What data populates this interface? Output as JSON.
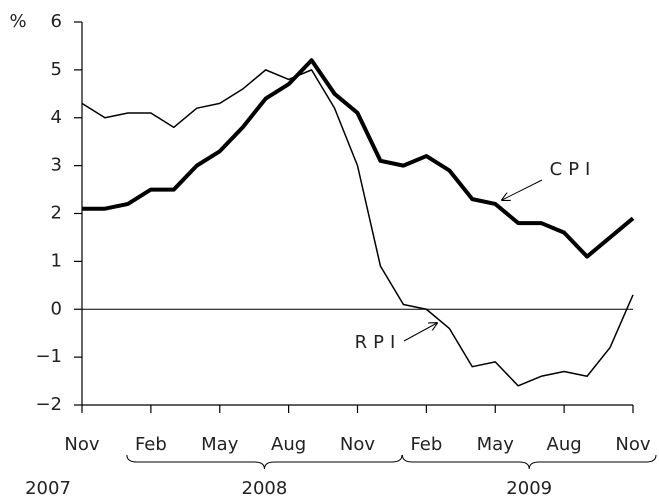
{
  "chart_data": {
    "type": "line",
    "y_label": "%",
    "categories": [
      "Nov",
      null,
      null,
      "Feb",
      null,
      null,
      "May",
      null,
      null,
      "Aug",
      null,
      null,
      "Nov",
      null,
      null,
      "Feb",
      null,
      null,
      "May",
      null,
      null,
      "Aug",
      null,
      null,
      "Nov"
    ],
    "years": [
      "2007",
      "2008",
      "2009"
    ],
    "series": [
      {
        "name": "CPI",
        "color": "#000000",
        "width": 4,
        "values": [
          2.1,
          2.1,
          2.2,
          2.5,
          2.5,
          3.0,
          3.3,
          3.8,
          4.4,
          4.7,
          5.2,
          4.5,
          4.1,
          3.1,
          3.0,
          3.2,
          2.9,
          2.3,
          2.2,
          1.8,
          1.8,
          1.6,
          1.1,
          1.5,
          1.9
        ]
      },
      {
        "name": "RPI",
        "color": "#000000",
        "width": 1.5,
        "values": [
          4.3,
          4.0,
          4.1,
          4.1,
          3.8,
          4.2,
          4.3,
          4.6,
          5.0,
          4.8,
          5.0,
          4.2,
          3.0,
          0.9,
          0.1,
          0.0,
          -0.4,
          -1.2,
          -1.1,
          -1.6,
          -1.4,
          -1.3,
          -1.4,
          -0.8,
          0.3
        ]
      }
    ],
    "ylim": [
      -2,
      6
    ],
    "yticks": [
      {
        "value": -2,
        "label": "−2"
      },
      {
        "value": -1,
        "label": "−1"
      },
      0,
      1,
      2,
      3,
      4,
      5,
      6
    ]
  }
}
